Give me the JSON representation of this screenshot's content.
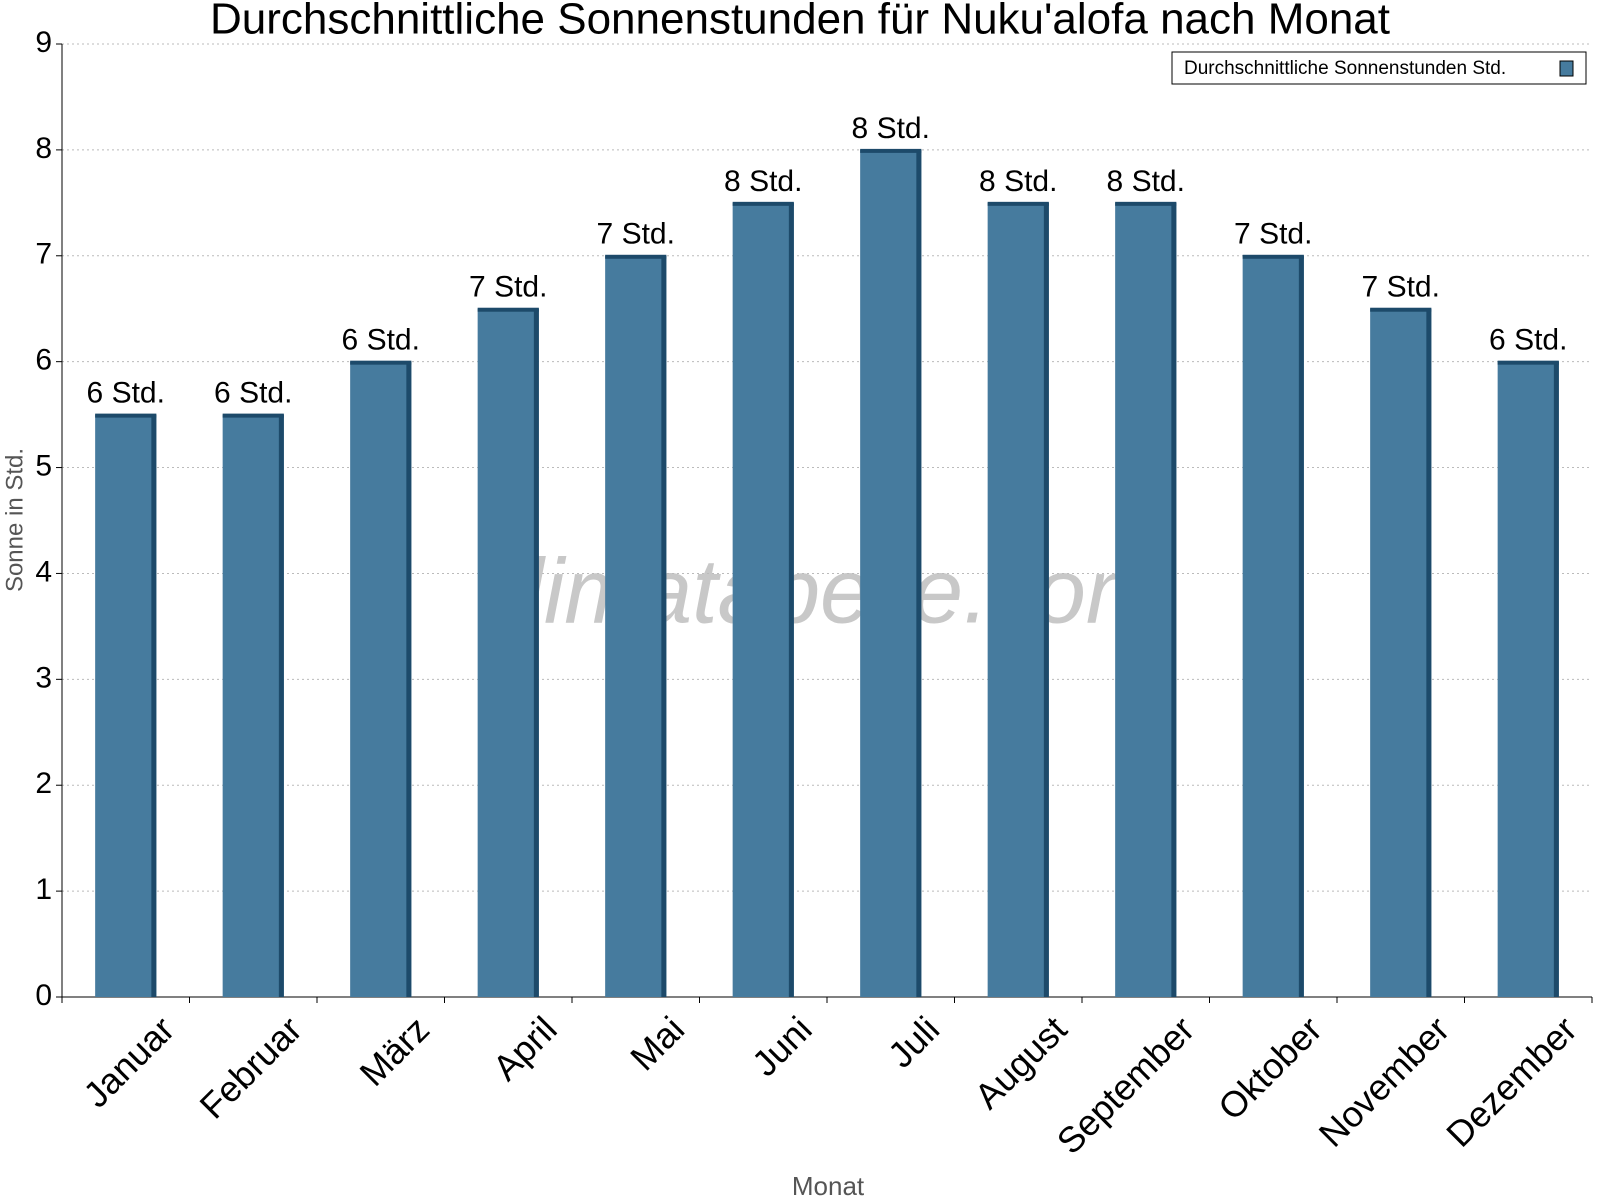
{
  "chart_data": {
    "type": "bar",
    "title": "Durchschnittliche Sonnenstunden für Nuku'alofa nach Monat",
    "x_label": "Monat",
    "y_label": "Sonne in Std.",
    "watermark": "klimatabelle.com",
    "categories": [
      "Januar",
      "Februar",
      "März",
      "April",
      "Mai",
      "Juni",
      "Juli",
      "August",
      "September",
      "Oktober",
      "November",
      "Dezember"
    ],
    "series": [
      {
        "name": "Durchschnittliche Sonnenstunden Std.",
        "color": "#467b9e",
        "values": [
          5.5,
          5.5,
          6,
          6.5,
          7,
          7.5,
          8,
          7.5,
          7.5,
          7,
          6.5,
          6
        ],
        "value_labels": [
          "6 Std.",
          "6 Std.",
          "6 Std.",
          "7 Std.",
          "7 Std.",
          "8 Std.",
          "8 Std.",
          "8 Std.",
          "8 Std.",
          "7 Std.",
          "7 Std.",
          "6 Std."
        ]
      }
    ],
    "ylim": [
      0,
      9
    ],
    "yticks": [
      0,
      1,
      2,
      3,
      4,
      5,
      6,
      7,
      8,
      9
    ],
    "grid": true,
    "legend": "top-right"
  }
}
